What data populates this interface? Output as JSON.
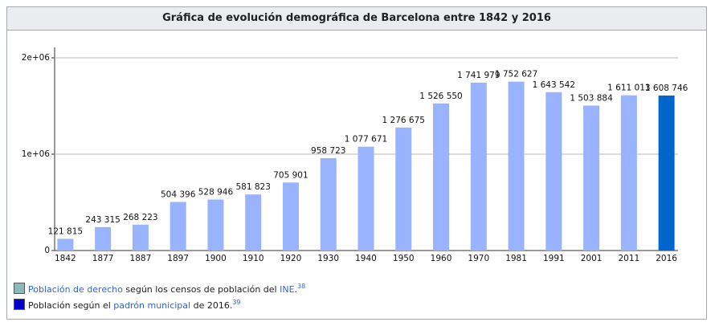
{
  "chart_data": {
    "type": "bar",
    "title": "Gráfica de evolución demográfica de Barcelona entre 1842 y 2016",
    "categories": [
      "1842",
      "1877",
      "1887",
      "1897",
      "1900",
      "1910",
      "1920",
      "1930",
      "1940",
      "1950",
      "1960",
      "1970",
      "1981",
      "1991",
      "2001",
      "2011",
      "2016"
    ],
    "values": [
      121815,
      243315,
      268223,
      504396,
      528946,
      581823,
      705901,
      958723,
      1077671,
      1276675,
      1526550,
      1741979,
      1752627,
      1643542,
      1503884,
      1611013,
      1608746
    ],
    "value_labels": [
      "121 815",
      "243 315",
      "268 223",
      "504 396",
      "528 946",
      "581 823",
      "705 901",
      "958 723",
      "1 077 671",
      "1 276 675",
      "1 526 550",
      "1 741 979",
      "1 752 627",
      "1 643 542",
      "1 503 884",
      "1 611 013",
      "1 608 746"
    ],
    "colors": [
      "#99b3ff",
      "#99b3ff",
      "#99b3ff",
      "#99b3ff",
      "#99b3ff",
      "#99b3ff",
      "#99b3ff",
      "#99b3ff",
      "#99b3ff",
      "#99b3ff",
      "#99b3ff",
      "#99b3ff",
      "#99b3ff",
      "#99b3ff",
      "#99b3ff",
      "#99b3ff",
      "#0066cc"
    ],
    "ylim": [
      0,
      2100000
    ],
    "yticks": [
      0,
      {
        "value": 1000000,
        "label": "1e+06"
      },
      {
        "value": 2000000,
        "label": "2e+06"
      }
    ],
    "grid": true
  },
  "legend": [
    {
      "color": "#88bbbb",
      "parts": [
        {
          "text": "Población de derecho",
          "link": true
        },
        {
          "text": " según los censos de población del ",
          "link": false
        },
        {
          "text": "INE",
          "link": true
        },
        {
          "text": ".",
          "link": false
        }
      ],
      "ref": "38"
    },
    {
      "color": "#0000cc",
      "parts": [
        {
          "text": "Población según el ",
          "link": false
        },
        {
          "text": "padrón municipal",
          "link": true
        },
        {
          "text": " de 2016.",
          "link": false
        }
      ],
      "ref": "39"
    }
  ]
}
